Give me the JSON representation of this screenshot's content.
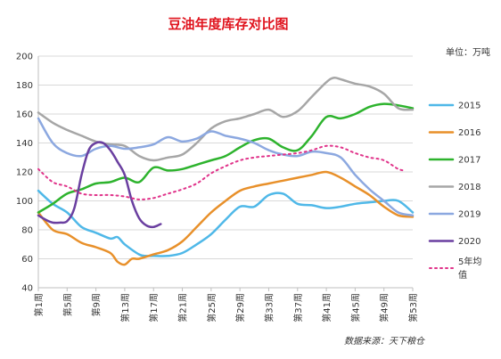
{
  "chart_data": {
    "type": "line",
    "title": "豆油年度库存对比图",
    "unit_label": "单位：万吨",
    "source": "数据来源：天下粮仓",
    "xlabel": "",
    "ylabel": "",
    "ylim": [
      40,
      200
    ],
    "yticks": [
      40,
      60,
      80,
      100,
      120,
      140,
      160,
      180,
      200
    ],
    "xlim": [
      1,
      53
    ],
    "x_tick_labels": [
      "第1周",
      "第5周",
      "第9周",
      "第13周",
      "第17周",
      "第21周",
      "第25周",
      "第29周",
      "第33周",
      "第37周",
      "第41周",
      "第45周",
      "第49周",
      "第53周"
    ],
    "x_tick_weeks": [
      1,
      5,
      9,
      13,
      17,
      21,
      25,
      29,
      33,
      37,
      41,
      45,
      49,
      53
    ],
    "grid": true,
    "legend_position": "right",
    "series": [
      {
        "name": "2015",
        "color": "#4fb8e8",
        "dashed": false,
        "x": [
          1,
          3,
          5,
          7,
          9,
          11,
          12,
          13,
          15,
          16,
          17,
          19,
          21,
          23,
          25,
          27,
          29,
          31,
          33,
          35,
          37,
          39,
          41,
          43,
          45,
          47,
          49,
          51,
          53
        ],
        "y": [
          107,
          98,
          92,
          82,
          78,
          74,
          75,
          70,
          63,
          62,
          62,
          62,
          64,
          70,
          77,
          87,
          96,
          96,
          104,
          105,
          98,
          97,
          95,
          96,
          98,
          99,
          100,
          100,
          92
        ]
      },
      {
        "name": "2016",
        "color": "#e8902a",
        "dashed": false,
        "x": [
          1,
          3,
          5,
          7,
          9,
          11,
          12,
          13,
          14,
          15,
          17,
          19,
          21,
          23,
          25,
          27,
          29,
          31,
          33,
          35,
          37,
          39,
          41,
          43,
          45,
          47,
          49,
          51,
          53
        ],
        "y": [
          92,
          80,
          77,
          71,
          68,
          64,
          58,
          56,
          60,
          60,
          63,
          66,
          72,
          82,
          92,
          100,
          107,
          110,
          112,
          114,
          116,
          118,
          120,
          116,
          110,
          104,
          96,
          90,
          89
        ]
      },
      {
        "name": "2017",
        "color": "#2db32d",
        "dashed": false,
        "x": [
          1,
          3,
          5,
          7,
          9,
          11,
          13,
          15,
          17,
          19,
          21,
          23,
          25,
          27,
          29,
          31,
          33,
          35,
          37,
          39,
          41,
          43,
          45,
          47,
          49,
          51,
          53
        ],
        "y": [
          92,
          98,
          105,
          108,
          112,
          113,
          116,
          113,
          123,
          121,
          122,
          125,
          128,
          131,
          137,
          142,
          143,
          137,
          135,
          145,
          158,
          157,
          160,
          165,
          167,
          166,
          164
        ]
      },
      {
        "name": "2018",
        "color": "#a6a6a6",
        "dashed": false,
        "x": [
          1,
          3,
          5,
          7,
          9,
          11,
          13,
          15,
          17,
          19,
          21,
          23,
          25,
          27,
          29,
          31,
          33,
          35,
          37,
          39,
          41,
          42,
          43,
          45,
          47,
          49,
          51,
          53
        ],
        "y": [
          161,
          154,
          149,
          145,
          141,
          139,
          138,
          131,
          128,
          130,
          132,
          140,
          150,
          155,
          157,
          160,
          163,
          158,
          162,
          172,
          182,
          185,
          184,
          181,
          179,
          174,
          164,
          163
        ]
      },
      {
        "name": "2019",
        "color": "#8ca8e0",
        "dashed": false,
        "x": [
          1,
          3,
          5,
          7,
          9,
          11,
          13,
          15,
          17,
          19,
          21,
          23,
          25,
          27,
          29,
          31,
          33,
          35,
          37,
          39,
          41,
          43,
          45,
          47,
          49,
          51,
          53
        ],
        "y": [
          157,
          140,
          133,
          131,
          136,
          138,
          136,
          137,
          139,
          144,
          141,
          143,
          148,
          145,
          143,
          140,
          135,
          132,
          131,
          134,
          133,
          130,
          118,
          108,
          100,
          92,
          90
        ]
      },
      {
        "name": "2020",
        "color": "#6a3fa0",
        "dashed": false,
        "x": [
          1,
          2,
          3,
          4,
          5,
          6,
          7,
          8,
          9,
          10,
          11,
          12,
          13,
          14,
          15,
          16,
          17,
          18
        ],
        "y": [
          90,
          87,
          85,
          85,
          86,
          95,
          118,
          135,
          140,
          140,
          135,
          127,
          118,
          100,
          88,
          83,
          82,
          84
        ]
      },
      {
        "name": "5年均值",
        "color": "#e0338a",
        "dashed": true,
        "x": [
          1,
          3,
          5,
          7,
          9,
          11,
          13,
          15,
          17,
          19,
          21,
          23,
          25,
          27,
          29,
          31,
          33,
          35,
          37,
          39,
          41,
          43,
          45,
          47,
          49,
          51,
          52
        ],
        "y": [
          122,
          113,
          110,
          105,
          104,
          104,
          103,
          101,
          102,
          105,
          108,
          112,
          119,
          124,
          128,
          130,
          131,
          132,
          133,
          135,
          138,
          137,
          133,
          130,
          128,
          122,
          121
        ]
      }
    ]
  }
}
